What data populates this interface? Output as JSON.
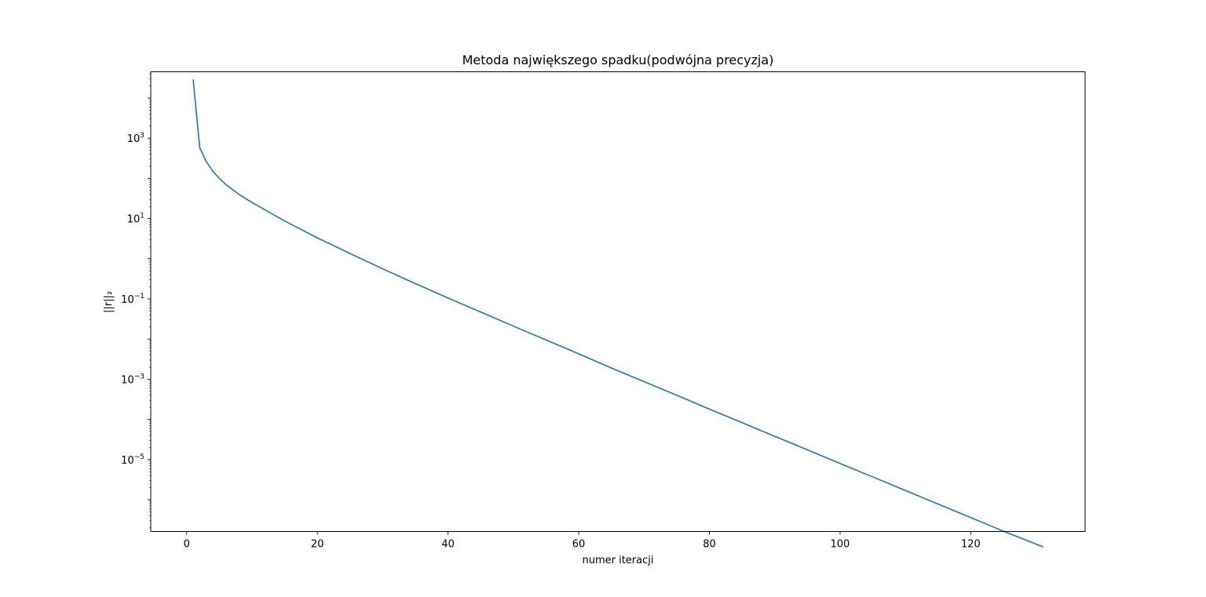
{
  "chart_data": {
    "type": "line",
    "title": "Metoda największego spadku(podwójna precyzja)",
    "xlabel": "numer iteracji",
    "ylabel": "||r||₂",
    "yscale": "log",
    "xlim": [
      -5.5,
      137.5
    ],
    "ylim": [
      1.62e-07,
      45000
    ],
    "grid": false,
    "xticks": [
      {
        "value": 0,
        "label": "0"
      },
      {
        "value": 20,
        "label": "20"
      },
      {
        "value": 40,
        "label": "40"
      },
      {
        "value": 60,
        "label": "60"
      },
      {
        "value": 80,
        "label": "80"
      },
      {
        "value": 100,
        "label": "100"
      },
      {
        "value": 120,
        "label": "120"
      }
    ],
    "yticks": [
      {
        "value": 1000,
        "base": "10",
        "exp": "3"
      },
      {
        "value": 10,
        "base": "10",
        "exp": "1"
      },
      {
        "value": 0.1,
        "base": "10",
        "exp": "−1"
      },
      {
        "value": 0.001,
        "base": "10",
        "exp": "−3"
      },
      {
        "value": 1e-05,
        "base": "10",
        "exp": "−5"
      }
    ],
    "series": [
      {
        "color": "#1f77b4",
        "points": [
          [
            1,
            28000
          ],
          [
            2,
            580
          ],
          [
            3,
            260
          ],
          [
            4,
            150
          ],
          [
            5,
            100
          ],
          [
            6,
            70
          ],
          [
            8,
            40
          ],
          [
            10,
            25
          ],
          [
            15,
            8.7
          ],
          [
            20,
            3.3
          ],
          [
            25,
            1.35
          ],
          [
            30,
            0.56
          ],
          [
            35,
            0.24
          ],
          [
            40,
            0.105
          ],
          [
            45,
            0.047
          ],
          [
            50,
            0.021
          ],
          [
            55,
            0.0095
          ],
          [
            60,
            0.0043
          ],
          [
            65,
            0.0019
          ],
          [
            70,
            0.00087
          ],
          [
            75,
            0.0004
          ],
          [
            80,
            0.00018
          ],
          [
            85,
            8.3e-05
          ],
          [
            90,
            3.8e-05
          ],
          [
            95,
            1.75e-05
          ],
          [
            100,
            8e-06
          ],
          [
            105,
            3.7e-06
          ],
          [
            110,
            1.7e-06
          ],
          [
            115,
            7.8e-07
          ],
          [
            120,
            3.6e-07
          ],
          [
            125,
            1.65e-07
          ],
          [
            131,
            6.8e-08
          ]
        ]
      }
    ]
  }
}
